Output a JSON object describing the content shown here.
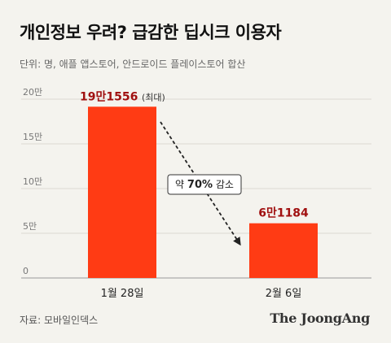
{
  "title": "개인정보 우려? 급감한 딥시크 이용자",
  "subtitle": "단위: 명, 애플 앱스토어, 안드로이드 플레이스토어 합산",
  "source": "자료: 모바일인덱스",
  "logo": "The JoongAng",
  "colors": {
    "bar": "#ff3b14",
    "value_label": "#a01010",
    "background": "#f4f3ee"
  },
  "chart_data": {
    "type": "bar",
    "categories": [
      "1월 28일",
      "2월 6일"
    ],
    "values": [
      191556,
      61184
    ],
    "value_labels": [
      "19만1556",
      "6만1184"
    ],
    "max_note": "(최대)",
    "ylim": [
      0,
      200000
    ],
    "yticks": [
      0,
      50000,
      100000,
      150000,
      200000
    ],
    "ytick_labels": [
      "0",
      "5만",
      "10만",
      "15만",
      "20만"
    ],
    "grid": true,
    "annotation": {
      "prefix": "약 ",
      "emphasis": "70%",
      "suffix": " 감소"
    }
  }
}
